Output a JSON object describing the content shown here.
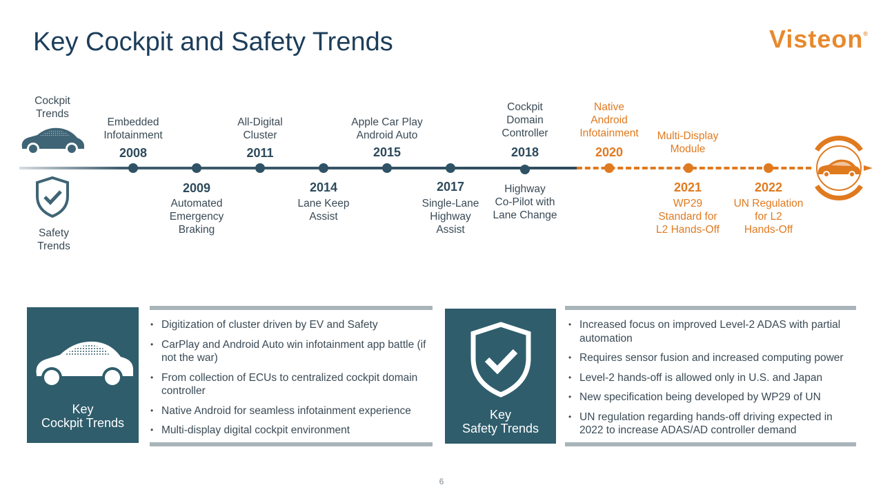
{
  "title": "Key Cockpit and Safety Trends",
  "logo": {
    "text": "Visteon",
    "mark": "®"
  },
  "colors": {
    "navy": "#1c3d5a",
    "teal": "#2f5d6c",
    "orange": "#e07a1f",
    "gray_bar": "#a9b4ba"
  },
  "side_labels": {
    "cockpit": "Cockpit\nTrends",
    "safety": "Safety\nTrends"
  },
  "timeline": {
    "top": [
      {
        "year": "2008",
        "label": "Embedded\nInfotainment"
      },
      {
        "year": "2011",
        "label": "All-Digital\nCluster"
      },
      {
        "year": "2015",
        "label": "Apple Car Play\nAndroid Auto"
      },
      {
        "year": "2018",
        "label": "Cockpit\nDomain\nController"
      },
      {
        "year": "2020",
        "label": "Native\nAndroid\nInfotainment"
      },
      {
        "year": "",
        "label": "Multi-Display\nModule"
      }
    ],
    "bottom": [
      {
        "year": "2009",
        "label": "Automated\nEmergency\nBraking"
      },
      {
        "year": "2014",
        "label": "Lane Keep\nAssist"
      },
      {
        "year": "2017",
        "label": "Single-Lane\nHighway\nAssist"
      },
      {
        "year": "",
        "label": "Highway\nCo-Pilot with\nLane Change"
      },
      {
        "year": "2021",
        "label": "WP29\nStandard for\nL2 Hands-Off"
      },
      {
        "year": "2022",
        "label": "UN Regulation\nfor L2\nHands-Off"
      }
    ]
  },
  "cockpit_box": {
    "title": "Key\nCockpit Trends",
    "bullets": [
      "Digitization of cluster driven by EV and Safety",
      "CarPlay and Android Auto win infotainment app battle (if not the war)",
      "From collection of ECUs to centralized cockpit domain controller",
      "Native Android for seamless infotainment experience",
      "Multi-display digital cockpit environment"
    ]
  },
  "safety_box": {
    "title": "Key\nSafety Trends",
    "bullets": [
      "Increased focus on improved Level-2 ADAS with partial automation",
      "Requires sensor fusion and increased computing power",
      "Level-2 hands-off is allowed only in U.S. and Japan",
      "New specification being developed by WP29 of UN",
      "UN regulation regarding hands-off driving expected in 2022 to increase ADAS/AD controller demand"
    ]
  },
  "page_number": "6"
}
